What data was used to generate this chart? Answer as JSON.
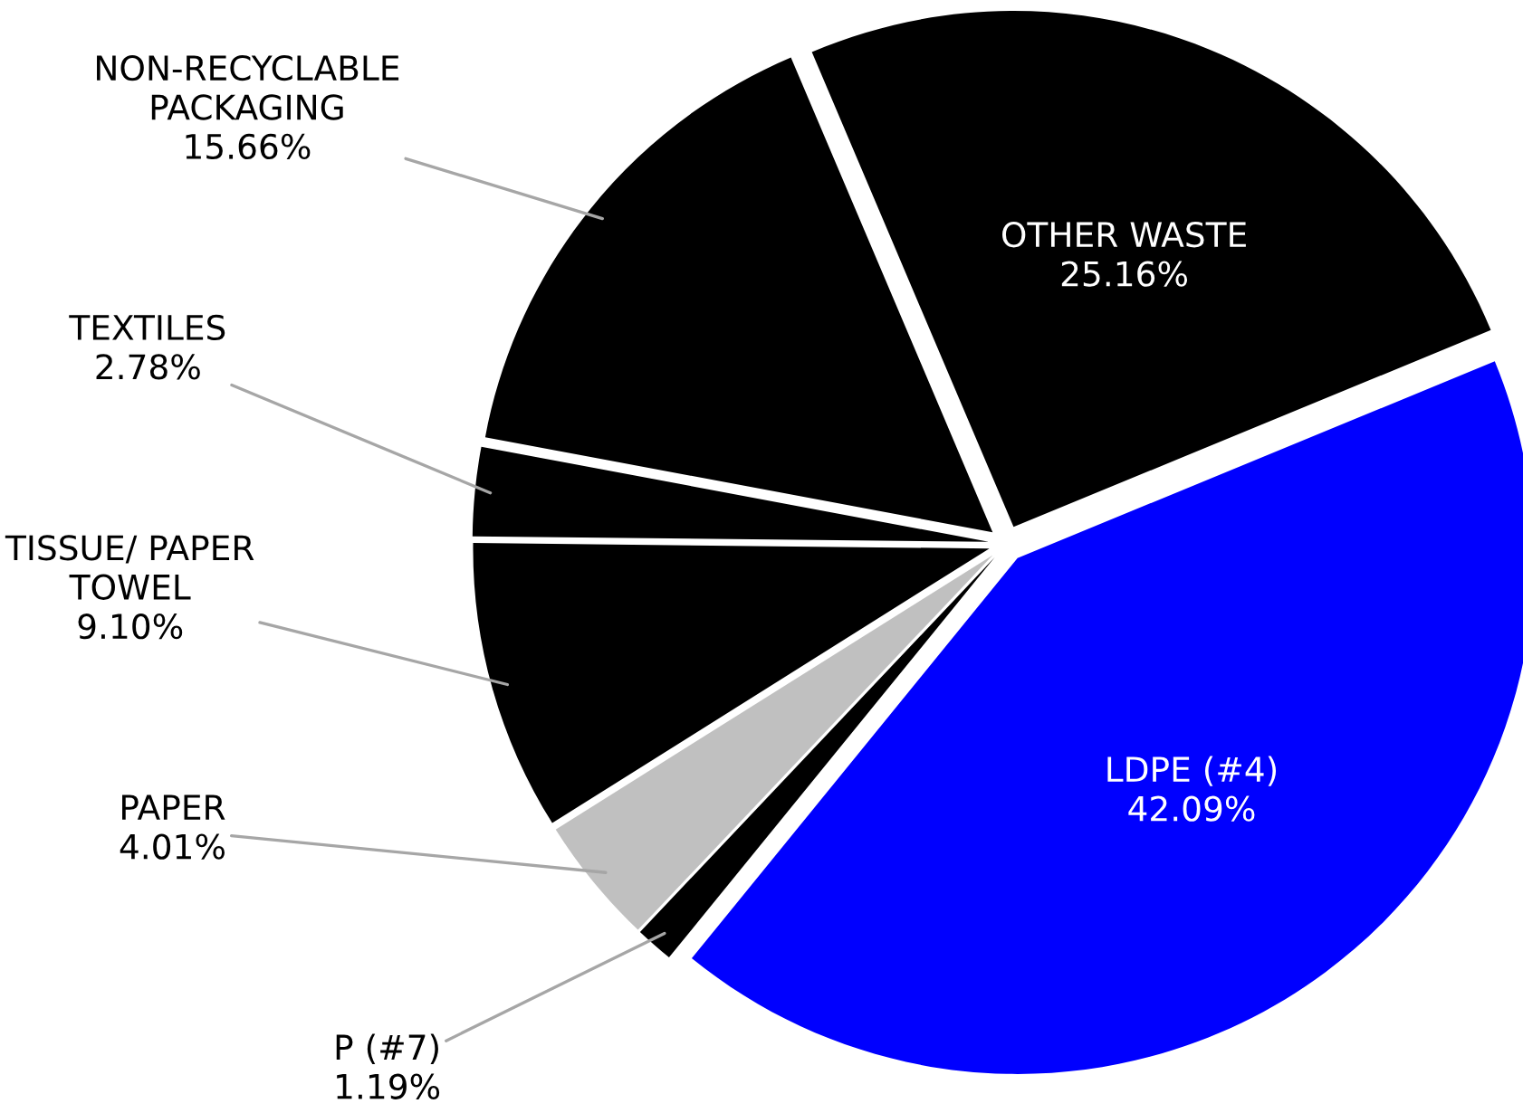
{
  "chart_data": {
    "type": "pie",
    "categories": [
      "OTHER WASTE",
      "LDPE (#4)",
      "P (#7)",
      "PAPER",
      "TISSUE/ PAPER\nTOWEL",
      "TEXTILES",
      "NON-RECYCLABLE\nPACKAGING"
    ],
    "values": [
      25.16,
      42.09,
      1.19,
      4.01,
      9.1,
      2.78,
      15.66
    ],
    "value_labels": [
      "25.16%",
      "42.09%",
      "1.19%",
      "4.01%",
      "9.10%",
      "2.78%",
      "15.66%"
    ],
    "colors": [
      "#000000",
      "#0000ff",
      "#000000",
      "#c0c0c0",
      "#000000",
      "#000000",
      "#000000"
    ],
    "legend": false
  }
}
